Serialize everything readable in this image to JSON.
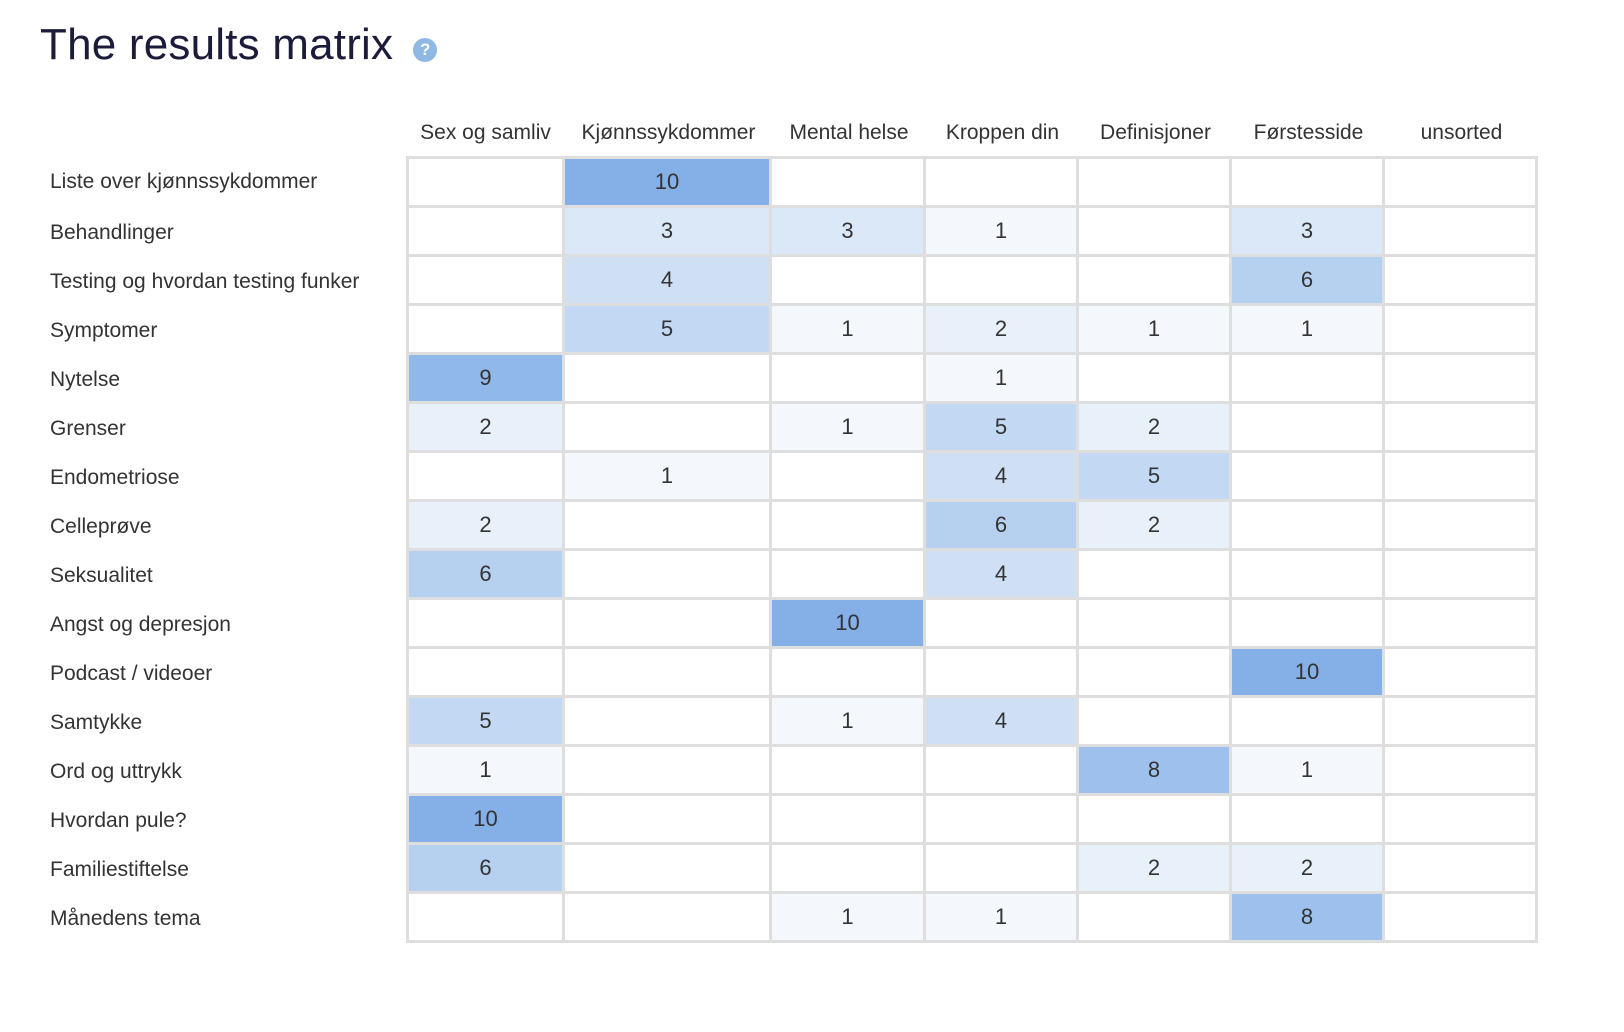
{
  "header": {
    "title": "The results matrix",
    "help_icon": "question-circle-icon",
    "help_glyph": "?"
  },
  "colors": {
    "max_cell": "#84b0e7",
    "min_cell": "#f4f8fc",
    "empty_cell": "#ffffff",
    "grid_line": "#dedede"
  },
  "matrix": {
    "max_value": 10,
    "columns": [
      "Sex og samliv",
      "Kjønnssykdommer",
      "Mental helse",
      "Kroppen din",
      "Definisjoner",
      "Førstesside",
      "unsorted"
    ],
    "rows": [
      {
        "label": "Liste over kjønnssykdommer",
        "values": [
          null,
          10,
          null,
          null,
          null,
          null,
          null
        ]
      },
      {
        "label": "Behandlinger",
        "values": [
          null,
          3,
          3,
          1,
          null,
          3,
          null
        ]
      },
      {
        "label": "Testing og hvordan testing funker",
        "values": [
          null,
          4,
          null,
          null,
          null,
          6,
          null
        ]
      },
      {
        "label": "Symptomer",
        "values": [
          null,
          5,
          1,
          2,
          1,
          1,
          null
        ]
      },
      {
        "label": "Nytelse",
        "values": [
          9,
          null,
          null,
          1,
          null,
          null,
          null
        ]
      },
      {
        "label": "Grenser",
        "values": [
          2,
          null,
          1,
          5,
          2,
          null,
          null
        ]
      },
      {
        "label": "Endometriose",
        "values": [
          null,
          1,
          null,
          4,
          5,
          null,
          null
        ]
      },
      {
        "label": "Celleprøve",
        "values": [
          2,
          null,
          null,
          6,
          2,
          null,
          null
        ]
      },
      {
        "label": "Seksualitet",
        "values": [
          6,
          null,
          null,
          4,
          null,
          null,
          null
        ]
      },
      {
        "label": "Angst og depresjon",
        "values": [
          null,
          null,
          10,
          null,
          null,
          null,
          null
        ]
      },
      {
        "label": "Podcast / videoer",
        "values": [
          null,
          null,
          null,
          null,
          null,
          10,
          null
        ]
      },
      {
        "label": "Samtykke",
        "values": [
          5,
          null,
          1,
          4,
          null,
          null,
          null
        ]
      },
      {
        "label": "Ord og uttrykk",
        "values": [
          1,
          null,
          null,
          null,
          8,
          1,
          null
        ]
      },
      {
        "label": "Hvordan pule?",
        "values": [
          10,
          null,
          null,
          null,
          null,
          null,
          null
        ]
      },
      {
        "label": "Familiestiftelse",
        "values": [
          6,
          null,
          null,
          null,
          2,
          2,
          null
        ]
      },
      {
        "label": "Månedens tema",
        "values": [
          null,
          null,
          1,
          1,
          null,
          8,
          null
        ]
      }
    ]
  }
}
